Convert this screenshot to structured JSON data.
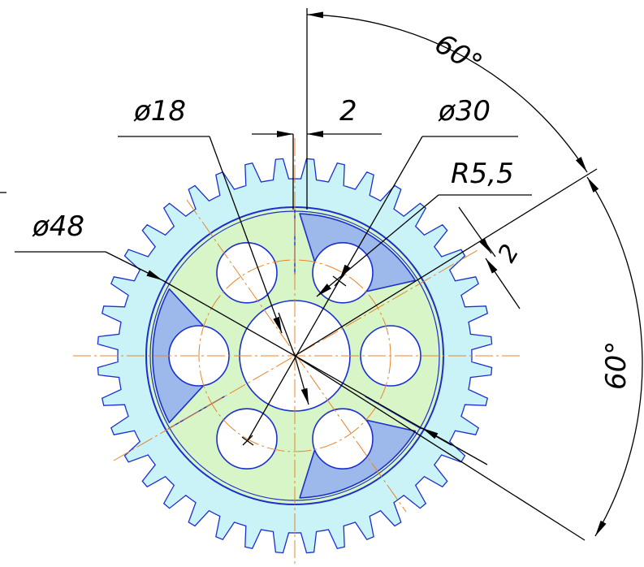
{
  "drawing": {
    "dim_hub_diameter": "ø18",
    "dim_gap": "2",
    "dim_bolt_circle": "ø30",
    "dim_fillet_radius": "R5,5",
    "dim_gap_right": "2",
    "dim_disk_diameter": "ø48",
    "dim_angle_top": "60°",
    "dim_angle_right": "60°"
  },
  "colors": {
    "gear_fill": "#c9f3f6",
    "disk_fill": "#d8f5c8",
    "pocket_fill": "#9db9ec",
    "outline": "#1a2fd0",
    "center_line": "#e8842a",
    "dimension": "#000000"
  },
  "gear": {
    "teeth": 40
  }
}
